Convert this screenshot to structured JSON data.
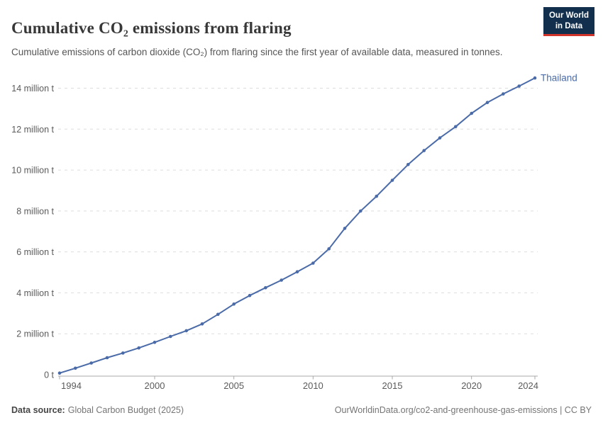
{
  "header": {
    "title": "Cumulative CO₂ emissions from flaring",
    "subtitle": "Cumulative emissions of carbon dioxide (CO₂) from flaring since the first year of available data, measured in tonnes.",
    "logo": {
      "line1": "Our World",
      "line2": "in Data"
    }
  },
  "chart_data": {
    "type": "line",
    "title": "Cumulative CO₂ emissions from flaring",
    "xlabel": "",
    "ylabel": "",
    "y_unit": "million tonnes",
    "x": [
      1994,
      1995,
      1996,
      1997,
      1998,
      1999,
      2000,
      2001,
      2002,
      2003,
      2004,
      2005,
      2006,
      2007,
      2008,
      2009,
      2010,
      2011,
      2012,
      2013,
      2014,
      2015,
      2016,
      2017,
      2018,
      2019,
      2020,
      2021,
      2022,
      2023,
      2024
    ],
    "series": [
      {
        "name": "Thailand",
        "color": "#4a6ba8",
        "values": [
          0.08,
          0.32,
          0.57,
          0.83,
          1.06,
          1.31,
          1.58,
          1.87,
          2.15,
          2.48,
          2.95,
          3.45,
          3.87,
          4.25,
          4.62,
          5.03,
          5.45,
          6.15,
          7.15,
          8.0,
          8.72,
          9.5,
          10.27,
          10.95,
          11.57,
          12.12,
          12.77,
          13.3,
          13.72,
          14.1,
          14.5
        ]
      }
    ],
    "yticks": [
      {
        "value": 0,
        "label": "0 t"
      },
      {
        "value": 2,
        "label": "2 million t"
      },
      {
        "value": 4,
        "label": "4 million t"
      },
      {
        "value": 6,
        "label": "6 million t"
      },
      {
        "value": 8,
        "label": "8 million t"
      },
      {
        "value": 10,
        "label": "10 million t"
      },
      {
        "value": 12,
        "label": "12 million t"
      },
      {
        "value": 14,
        "label": "14 million t"
      }
    ],
    "xticks": [
      1994,
      2000,
      2005,
      2010,
      2015,
      2020,
      2024
    ],
    "xlim": [
      1994,
      2024
    ],
    "ylim": [
      0,
      14.6
    ],
    "grid": "horizontal-dashed",
    "legend_position": "end-of-line-label"
  },
  "footer": {
    "source_label": "Data source:",
    "source_value": "Global Carbon Budget (2025)",
    "citation": "OurWorldinData.org/co2-and-greenhouse-gas-emissions | CC BY"
  },
  "colors": {
    "series": "#4a6ba8",
    "grid": "#dddddd",
    "axis": "#a9a9a9",
    "tick_text": "#5b5b5b",
    "logo_bg": "#12304e",
    "logo_accent": "#d1342b"
  }
}
